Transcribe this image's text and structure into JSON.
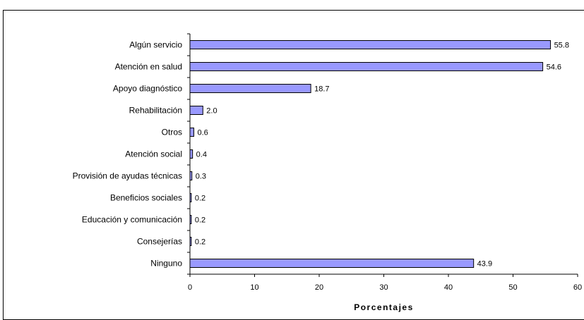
{
  "chart_data": {
    "type": "bar",
    "orientation": "horizontal",
    "title": "",
    "xlabel": "Porcentajes",
    "ylabel": "",
    "xlim": [
      0,
      60
    ],
    "x_ticks": [
      "0",
      "10",
      "20",
      "30",
      "40",
      "50",
      "60"
    ],
    "grid": false,
    "legend": "none",
    "bar_color": "#9999ff",
    "bar_edge_color": "#000000",
    "categories": [
      "Algún servicio",
      "Atención en salud",
      "Apoyo diagnóstico",
      "Rehabilitación",
      "Otros",
      "Atención social",
      "Provisión de ayudas técnicas",
      "Beneficios sociales",
      "Educación y comunicación",
      "Consejerías",
      "Ninguno"
    ],
    "values": [
      55.8,
      54.6,
      18.7,
      2.0,
      0.6,
      0.4,
      0.3,
      0.2,
      0.2,
      0.2,
      43.9
    ],
    "value_labels": [
      "55.8",
      "54.6",
      "18.7",
      "2.0",
      "0.6",
      "0.4",
      "0.3",
      "0.2",
      "0.2",
      "0.2",
      "43.9"
    ]
  }
}
